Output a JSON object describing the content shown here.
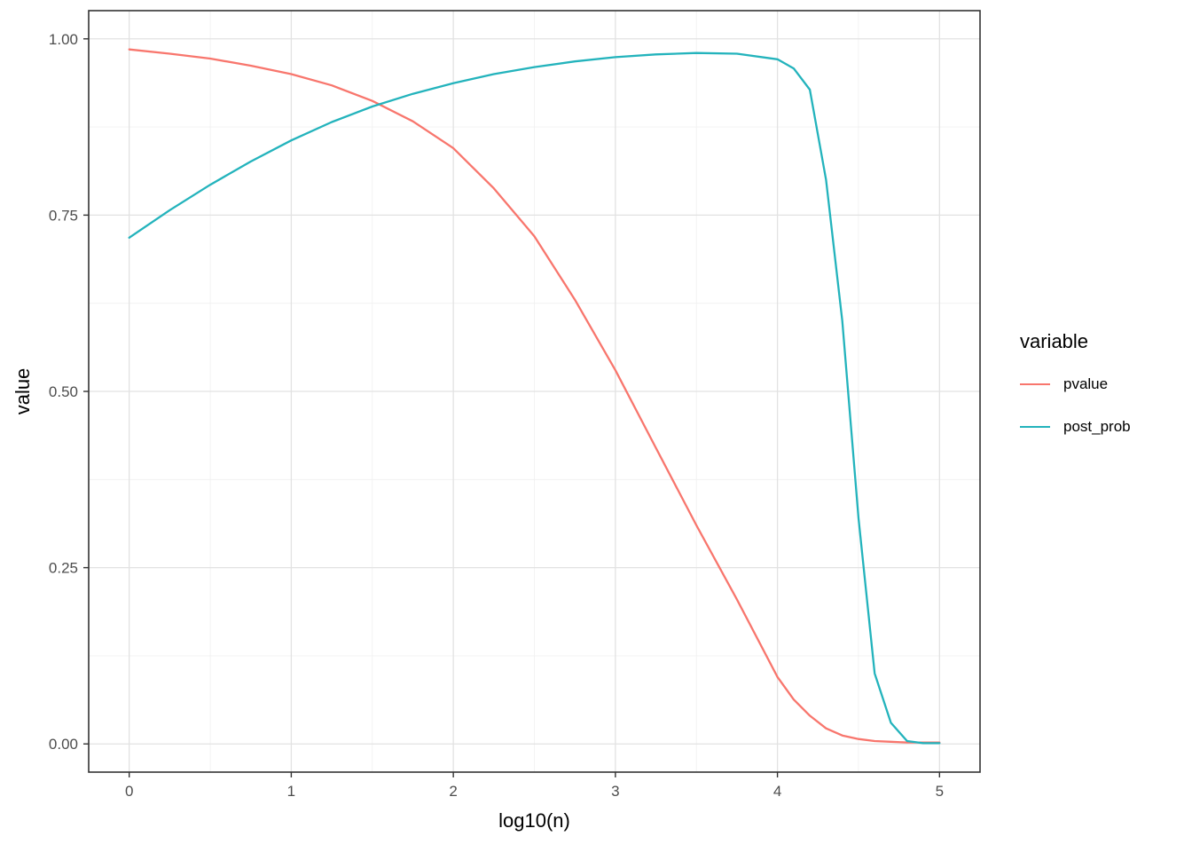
{
  "chart_data": {
    "type": "line",
    "xlabel": "log10(n)",
    "ylabel": "value",
    "xlim": [
      -0.25,
      5.25
    ],
    "ylim": [
      -0.04,
      1.04
    ],
    "grid": true,
    "panel_border": true,
    "legend": {
      "title": "variable",
      "position": "right"
    },
    "x_ticks": {
      "values": [
        0,
        1,
        2,
        3,
        4,
        5
      ],
      "labels": [
        "0",
        "1",
        "2",
        "3",
        "4",
        "5"
      ]
    },
    "y_ticks": {
      "values": [
        0,
        0.25,
        0.5,
        0.75,
        1
      ],
      "labels": [
        "0.00",
        "0.25",
        "0.50",
        "0.75",
        "1.00"
      ]
    },
    "x_minor": [
      0.5,
      1.5,
      2.5,
      3.5,
      4.5
    ],
    "y_minor": [
      0.125,
      0.375,
      0.625,
      0.875
    ],
    "x": [
      0,
      0.25,
      0.5,
      0.75,
      1,
      1.25,
      1.5,
      1.75,
      2,
      2.25,
      2.5,
      2.75,
      3,
      3.25,
      3.5,
      3.75,
      4,
      4.1,
      4.2,
      4.3,
      4.4,
      4.5,
      4.6,
      4.7,
      4.8,
      4.9,
      5
    ],
    "series": [
      {
        "name": "pvalue",
        "color": "#F8766D",
        "values": [
          0.985,
          0.979,
          0.972,
          0.962,
          0.95,
          0.934,
          0.912,
          0.883,
          0.845,
          0.788,
          0.72,
          0.63,
          0.53,
          0.42,
          0.31,
          0.205,
          0.095,
          0.063,
          0.04,
          0.022,
          0.012,
          0.007,
          0.004,
          0.003,
          0.002,
          0.002,
          0.002
        ],
        "label": "pvalue"
      },
      {
        "name": "post_prob",
        "color": "#23B3BC",
        "values": [
          0.718,
          0.757,
          0.793,
          0.826,
          0.856,
          0.882,
          0.904,
          0.922,
          0.937,
          0.95,
          0.96,
          0.968,
          0.974,
          0.978,
          0.98,
          0.979,
          0.971,
          0.958,
          0.928,
          0.8,
          0.6,
          0.32,
          0.1,
          0.03,
          0.004,
          0.001,
          0.001
        ],
        "label": "post_prob"
      }
    ]
  },
  "colors": {
    "panel_background": "#FFFFFF",
    "grid_major": "#E2E2E2",
    "grid_minor": "#F0F0F0",
    "panel_border": "#333333",
    "tick_mark": "#333333",
    "axis_text": "#4D4D4D",
    "title_text": "#000000"
  }
}
